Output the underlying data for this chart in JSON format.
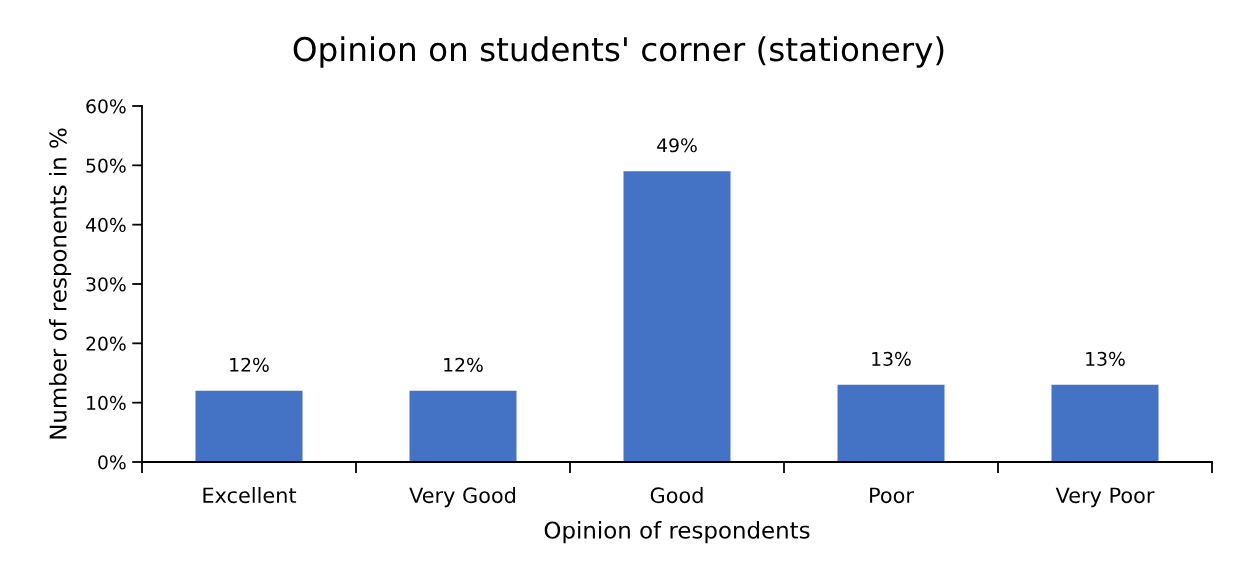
{
  "chart_data": {
    "type": "bar",
    "title": "Opinion on students' corner (stationery)",
    "xlabel": "Opinion of respondents",
    "ylabel": "Number of responents in %",
    "categories": [
      "Excellent",
      "Very Good",
      "Good",
      "Poor",
      "Very Poor"
    ],
    "values": [
      12,
      12,
      49,
      13,
      13
    ],
    "color": "#4472c4",
    "value_labels": [
      "12%",
      "12%",
      "49%",
      "13%",
      "13%"
    ],
    "ylim": [
      0,
      60
    ],
    "yticks": [
      {
        "value": 0,
        "label": "0%"
      },
      {
        "value": 10,
        "label": "10%"
      },
      {
        "value": 20,
        "label": "20%"
      },
      {
        "value": 30,
        "label": "30%"
      },
      {
        "value": 40,
        "label": "40%"
      },
      {
        "value": 50,
        "label": "50%"
      },
      {
        "value": 60,
        "label": "60%"
      }
    ]
  }
}
